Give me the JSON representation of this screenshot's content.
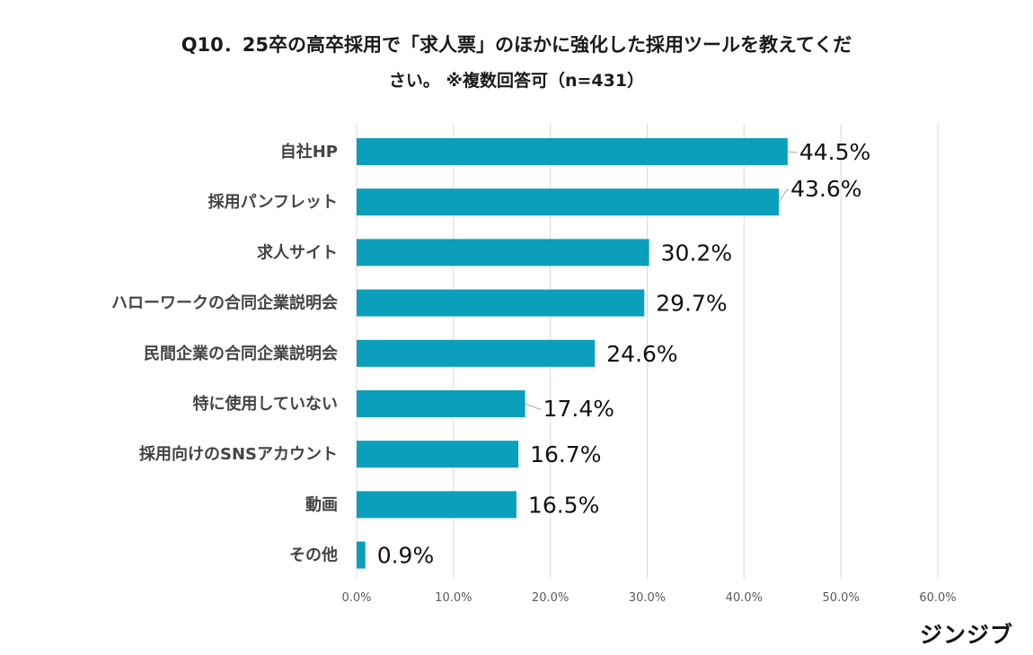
{
  "title_line1": "Q10．25卒の高卒採用で「求人票」のほかに強化した採用ツールを教えてくだ",
  "title_line2": "さい。 ※複数回答可（n=431）",
  "brand": "ジンジブ",
  "chart_data": {
    "type": "bar",
    "orientation": "horizontal",
    "categories": [
      "自社HP",
      "採用パンフレット",
      "求人サイト",
      "ハローワークの合同企業説明会",
      "民間企業の合同企業説明会",
      "特に使用していない",
      "採用向けのSNSアカウント",
      "動画",
      "その他"
    ],
    "values": [
      44.5,
      43.6,
      30.2,
      29.7,
      24.6,
      17.4,
      16.7,
      16.5,
      0.9
    ],
    "value_labels": [
      "44.5%",
      "43.6%",
      "30.2%",
      "29.7%",
      "24.6%",
      "17.4%",
      "16.7%",
      "16.5%",
      "0.9%"
    ],
    "xlim": [
      0,
      60
    ],
    "xticks": [
      0,
      10,
      20,
      30,
      40,
      50,
      60
    ],
    "xtick_labels": [
      "0.0%",
      "10.0%",
      "20.0%",
      "30.0%",
      "40.0%",
      "50.0%",
      "60.0%"
    ],
    "grid": true,
    "bar_color": "#0b9fbb",
    "grid_color": "#d9d9d9",
    "leader_color": "#a6a6a6"
  }
}
